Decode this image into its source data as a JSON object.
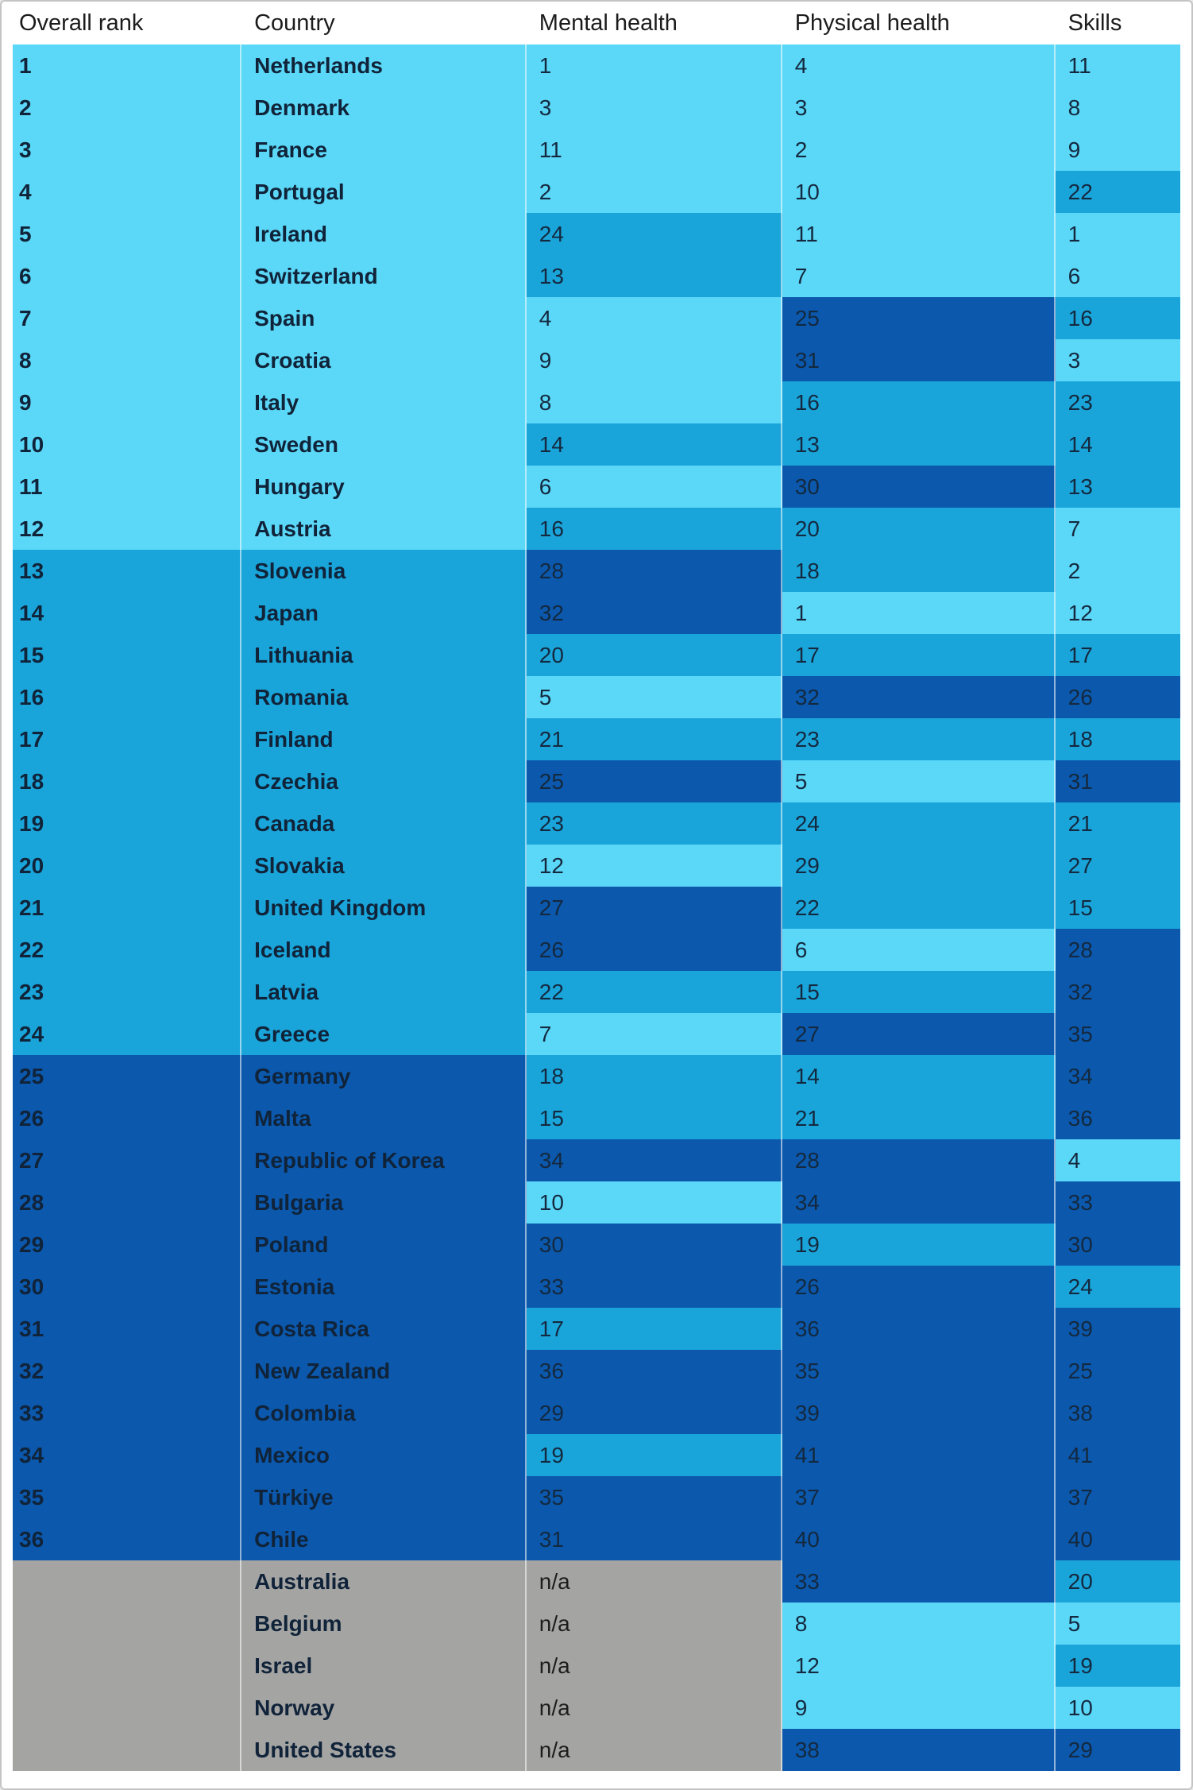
{
  "chart_data": {
    "type": "heatmap",
    "columns": [
      "Overall rank",
      "Country",
      "Mental health",
      "Physical health",
      "Skills"
    ],
    "color_scale": {
      "light": "#5bd7f7",
      "medium": "#1aa5da",
      "dark": "#0b58ac",
      "na": "#a4a4a3"
    },
    "rows": [
      {
        "overall_rank": "1",
        "country": "Netherlands",
        "mental_health": "1",
        "physical_health": "4",
        "skills": "11",
        "band": "light",
        "levels": {
          "mental_health": "light",
          "physical_health": "light",
          "skills": "light"
        }
      },
      {
        "overall_rank": "2",
        "country": "Denmark",
        "mental_health": "3",
        "physical_health": "3",
        "skills": "8",
        "band": "light",
        "levels": {
          "mental_health": "light",
          "physical_health": "light",
          "skills": "light"
        }
      },
      {
        "overall_rank": "3",
        "country": "France",
        "mental_health": "11",
        "physical_health": "2",
        "skills": "9",
        "band": "light",
        "levels": {
          "mental_health": "light",
          "physical_health": "light",
          "skills": "light"
        }
      },
      {
        "overall_rank": "4",
        "country": "Portugal",
        "mental_health": "2",
        "physical_health": "10",
        "skills": "22",
        "band": "light",
        "levels": {
          "mental_health": "light",
          "physical_health": "light",
          "skills": "medium"
        }
      },
      {
        "overall_rank": "5",
        "country": "Ireland",
        "mental_health": "24",
        "physical_health": "11",
        "skills": "1",
        "band": "light",
        "levels": {
          "mental_health": "medium",
          "physical_health": "light",
          "skills": "light"
        }
      },
      {
        "overall_rank": "6",
        "country": "Switzerland",
        "mental_health": "13",
        "physical_health": "7",
        "skills": "6",
        "band": "light",
        "levels": {
          "mental_health": "medium",
          "physical_health": "light",
          "skills": "light"
        }
      },
      {
        "overall_rank": "7",
        "country": "Spain",
        "mental_health": "4",
        "physical_health": "25",
        "skills": "16",
        "band": "light",
        "levels": {
          "mental_health": "light",
          "physical_health": "dark",
          "skills": "medium"
        }
      },
      {
        "overall_rank": "8",
        "country": "Croatia",
        "mental_health": "9",
        "physical_health": "31",
        "skills": "3",
        "band": "light",
        "levels": {
          "mental_health": "light",
          "physical_health": "dark",
          "skills": "light"
        }
      },
      {
        "overall_rank": "9",
        "country": "Italy",
        "mental_health": "8",
        "physical_health": "16",
        "skills": "23",
        "band": "light",
        "levels": {
          "mental_health": "light",
          "physical_health": "medium",
          "skills": "medium"
        }
      },
      {
        "overall_rank": "10",
        "country": "Sweden",
        "mental_health": "14",
        "physical_health": "13",
        "skills": "14",
        "band": "light",
        "levels": {
          "mental_health": "medium",
          "physical_health": "medium",
          "skills": "medium"
        }
      },
      {
        "overall_rank": "11",
        "country": "Hungary",
        "mental_health": "6",
        "physical_health": "30",
        "skills": "13",
        "band": "light",
        "levels": {
          "mental_health": "light",
          "physical_health": "dark",
          "skills": "medium"
        }
      },
      {
        "overall_rank": "12",
        "country": "Austria",
        "mental_health": "16",
        "physical_health": "20",
        "skills": "7",
        "band": "light",
        "levels": {
          "mental_health": "medium",
          "physical_health": "medium",
          "skills": "light"
        }
      },
      {
        "overall_rank": "13",
        "country": "Slovenia",
        "mental_health": "28",
        "physical_health": "18",
        "skills": "2",
        "band": "medium",
        "levels": {
          "mental_health": "dark",
          "physical_health": "medium",
          "skills": "light"
        }
      },
      {
        "overall_rank": "14",
        "country": "Japan",
        "mental_health": "32",
        "physical_health": "1",
        "skills": "12",
        "band": "medium",
        "levels": {
          "mental_health": "dark",
          "physical_health": "light",
          "skills": "light"
        }
      },
      {
        "overall_rank": "15",
        "country": "Lithuania",
        "mental_health": "20",
        "physical_health": "17",
        "skills": "17",
        "band": "medium",
        "levels": {
          "mental_health": "medium",
          "physical_health": "medium",
          "skills": "medium"
        }
      },
      {
        "overall_rank": "16",
        "country": "Romania",
        "mental_health": "5",
        "physical_health": "32",
        "skills": "26",
        "band": "medium",
        "levels": {
          "mental_health": "light",
          "physical_health": "dark",
          "skills": "dark"
        }
      },
      {
        "overall_rank": "17",
        "country": "Finland",
        "mental_health": "21",
        "physical_health": "23",
        "skills": "18",
        "band": "medium",
        "levels": {
          "mental_health": "medium",
          "physical_health": "medium",
          "skills": "medium"
        }
      },
      {
        "overall_rank": "18",
        "country": "Czechia",
        "mental_health": "25",
        "physical_health": "5",
        "skills": "31",
        "band": "medium",
        "levels": {
          "mental_health": "dark",
          "physical_health": "light",
          "skills": "dark"
        }
      },
      {
        "overall_rank": "19",
        "country": "Canada",
        "mental_health": "23",
        "physical_health": "24",
        "skills": "21",
        "band": "medium",
        "levels": {
          "mental_health": "medium",
          "physical_health": "medium",
          "skills": "medium"
        }
      },
      {
        "overall_rank": "20",
        "country": "Slovakia",
        "mental_health": "12",
        "physical_health": "29",
        "skills": "27",
        "band": "medium",
        "levels": {
          "mental_health": "light",
          "physical_health": "medium",
          "skills": "medium"
        }
      },
      {
        "overall_rank": "21",
        "country": "United Kingdom",
        "mental_health": "27",
        "physical_health": "22",
        "skills": "15",
        "band": "medium",
        "levels": {
          "mental_health": "dark",
          "physical_health": "medium",
          "skills": "medium"
        }
      },
      {
        "overall_rank": "22",
        "country": "Iceland",
        "mental_health": "26",
        "physical_health": "6",
        "skills": "28",
        "band": "medium",
        "levels": {
          "mental_health": "dark",
          "physical_health": "light",
          "skills": "dark"
        }
      },
      {
        "overall_rank": "23",
        "country": "Latvia",
        "mental_health": "22",
        "physical_health": "15",
        "skills": "32",
        "band": "medium",
        "levels": {
          "mental_health": "medium",
          "physical_health": "medium",
          "skills": "dark"
        }
      },
      {
        "overall_rank": "24",
        "country": "Greece",
        "mental_health": "7",
        "physical_health": "27",
        "skills": "35",
        "band": "medium",
        "levels": {
          "mental_health": "light",
          "physical_health": "dark",
          "skills": "dark"
        }
      },
      {
        "overall_rank": "25",
        "country": "Germany",
        "mental_health": "18",
        "physical_health": "14",
        "skills": "34",
        "band": "dark",
        "levels": {
          "mental_health": "medium",
          "physical_health": "medium",
          "skills": "dark"
        }
      },
      {
        "overall_rank": "26",
        "country": "Malta",
        "mental_health": "15",
        "physical_health": "21",
        "skills": "36",
        "band": "dark",
        "levels": {
          "mental_health": "medium",
          "physical_health": "medium",
          "skills": "dark"
        }
      },
      {
        "overall_rank": "27",
        "country": "Republic of Korea",
        "mental_health": "34",
        "physical_health": "28",
        "skills": "4",
        "band": "dark",
        "levels": {
          "mental_health": "dark",
          "physical_health": "dark",
          "skills": "light"
        }
      },
      {
        "overall_rank": "28",
        "country": "Bulgaria",
        "mental_health": "10",
        "physical_health": "34",
        "skills": "33",
        "band": "dark",
        "levels": {
          "mental_health": "light",
          "physical_health": "dark",
          "skills": "dark"
        }
      },
      {
        "overall_rank": "29",
        "country": "Poland",
        "mental_health": "30",
        "physical_health": "19",
        "skills": "30",
        "band": "dark",
        "levels": {
          "mental_health": "dark",
          "physical_health": "medium",
          "skills": "dark"
        }
      },
      {
        "overall_rank": "30",
        "country": "Estonia",
        "mental_health": "33",
        "physical_health": "26",
        "skills": "24",
        "band": "dark",
        "levels": {
          "mental_health": "dark",
          "physical_health": "dark",
          "skills": "medium"
        }
      },
      {
        "overall_rank": "31",
        "country": "Costa Rica",
        "mental_health": "17",
        "physical_health": "36",
        "skills": "39",
        "band": "dark",
        "levels": {
          "mental_health": "medium",
          "physical_health": "dark",
          "skills": "dark"
        }
      },
      {
        "overall_rank": "32",
        "country": "New Zealand",
        "mental_health": "36",
        "physical_health": "35",
        "skills": "25",
        "band": "dark",
        "levels": {
          "mental_health": "dark",
          "physical_health": "dark",
          "skills": "dark"
        }
      },
      {
        "overall_rank": "33",
        "country": "Colombia",
        "mental_health": "29",
        "physical_health": "39",
        "skills": "38",
        "band": "dark",
        "levels": {
          "mental_health": "dark",
          "physical_health": "dark",
          "skills": "dark"
        }
      },
      {
        "overall_rank": "34",
        "country": "Mexico",
        "mental_health": "19",
        "physical_health": "41",
        "skills": "41",
        "band": "dark",
        "levels": {
          "mental_health": "medium",
          "physical_health": "dark",
          "skills": "dark"
        }
      },
      {
        "overall_rank": "35",
        "country": "Türkiye",
        "mental_health": "35",
        "physical_health": "37",
        "skills": "37",
        "band": "dark",
        "levels": {
          "mental_health": "dark",
          "physical_health": "dark",
          "skills": "dark"
        }
      },
      {
        "overall_rank": "36",
        "country": "Chile",
        "mental_health": "31",
        "physical_health": "40",
        "skills": "40",
        "band": "dark",
        "levels": {
          "mental_health": "dark",
          "physical_health": "dark",
          "skills": "dark"
        }
      },
      {
        "overall_rank": "",
        "country": "Australia",
        "mental_health": "n/a",
        "physical_health": "33",
        "skills": "20",
        "band": "na",
        "levels": {
          "mental_health": "na",
          "physical_health": "dark",
          "skills": "medium"
        }
      },
      {
        "overall_rank": "",
        "country": "Belgium",
        "mental_health": "n/a",
        "physical_health": "8",
        "skills": "5",
        "band": "na",
        "levels": {
          "mental_health": "na",
          "physical_health": "light",
          "skills": "light"
        }
      },
      {
        "overall_rank": "",
        "country": "Israel",
        "mental_health": "n/a",
        "physical_health": "12",
        "skills": "19",
        "band": "na",
        "levels": {
          "mental_health": "na",
          "physical_health": "light",
          "skills": "medium"
        }
      },
      {
        "overall_rank": "",
        "country": "Norway",
        "mental_health": "n/a",
        "physical_health": "9",
        "skills": "10",
        "band": "na",
        "levels": {
          "mental_health": "na",
          "physical_health": "light",
          "skills": "light"
        }
      },
      {
        "overall_rank": "",
        "country": "United States",
        "mental_health": "n/a",
        "physical_health": "38",
        "skills": "29",
        "band": "na",
        "levels": {
          "mental_health": "na",
          "physical_health": "dark",
          "skills": "dark"
        }
      }
    ]
  }
}
